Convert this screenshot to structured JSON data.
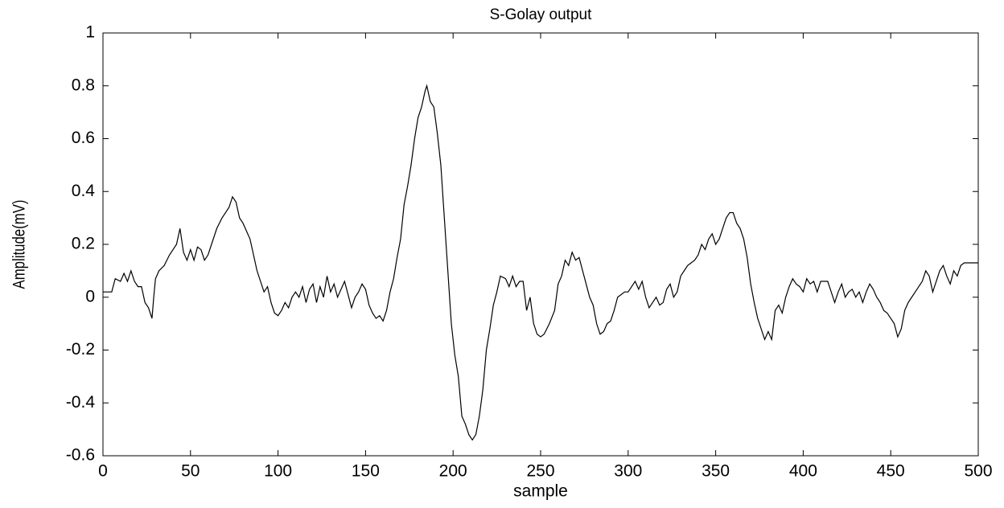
{
  "chart_data": {
    "type": "line",
    "title": "S-Golay output",
    "x_label": "sample",
    "y_label": "Amplitude(mV)",
    "x": [
      0,
      5,
      7,
      10,
      12,
      14,
      16,
      18,
      20,
      22,
      24,
      26,
      28,
      29,
      30,
      32,
      35,
      38,
      40,
      42,
      44,
      46,
      48,
      50,
      52,
      54,
      56,
      58,
      60,
      62,
      65,
      68,
      70,
      72,
      74,
      76,
      78,
      80,
      84,
      86,
      88,
      90,
      92,
      94,
      96,
      98,
      100,
      102,
      104,
      106,
      108,
      110,
      112,
      114,
      116,
      118,
      120,
      122,
      124,
      126,
      128,
      130,
      132,
      134,
      136,
      138,
      140,
      142,
      144,
      146,
      148,
      150,
      152,
      154,
      156,
      158,
      160,
      162,
      164,
      166,
      168,
      170,
      172,
      174,
      176,
      178,
      180,
      182,
      184,
      185,
      187,
      189,
      191,
      193,
      195,
      197,
      199,
      201,
      203,
      205,
      207,
      209,
      211,
      213,
      215,
      217,
      219,
      221,
      223,
      225,
      227,
      230,
      232,
      234,
      236,
      238,
      240,
      242,
      244,
      246,
      248,
      250,
      252,
      255,
      258,
      260,
      262,
      264,
      266,
      268,
      270,
      272,
      274,
      276,
      278,
      280,
      282,
      284,
      286,
      288,
      290,
      292,
      294,
      296,
      298,
      300,
      302,
      304,
      306,
      308,
      310,
      312,
      314,
      316,
      318,
      320,
      322,
      324,
      326,
      328,
      330,
      332,
      334,
      336,
      338,
      340,
      342,
      344,
      346,
      348,
      350,
      352,
      354,
      356,
      358,
      360,
      362,
      364,
      366,
      368,
      370,
      372,
      374,
      376,
      378,
      380,
      382,
      384,
      386,
      388,
      390,
      392,
      394,
      396,
      398,
      400,
      402,
      404,
      406,
      408,
      410,
      412,
      414,
      416,
      418,
      420,
      422,
      424,
      426,
      428,
      430,
      432,
      434,
      436,
      438,
      440,
      442,
      444,
      446,
      448,
      450,
      452,
      454,
      456,
      458,
      460,
      462,
      464,
      466,
      468,
      470,
      472,
      474,
      476,
      478,
      480,
      482,
      484,
      486,
      488,
      490,
      492,
      500
    ],
    "values": [
      0.02,
      0.02,
      0.07,
      0.06,
      0.09,
      0.06,
      0.1,
      0.06,
      0.04,
      0.04,
      -0.02,
      -0.04,
      -0.08,
      0.0,
      0.07,
      0.1,
      0.12,
      0.16,
      0.18,
      0.2,
      0.26,
      0.17,
      0.14,
      0.18,
      0.14,
      0.19,
      0.18,
      0.14,
      0.16,
      0.2,
      0.26,
      0.3,
      0.32,
      0.34,
      0.38,
      0.36,
      0.3,
      0.28,
      0.22,
      0.16,
      0.1,
      0.06,
      0.02,
      0.04,
      -0.02,
      -0.06,
      -0.07,
      -0.05,
      -0.02,
      -0.04,
      0.0,
      0.02,
      0.0,
      0.04,
      -0.02,
      0.03,
      0.05,
      -0.02,
      0.04,
      0.0,
      0.08,
      0.02,
      0.05,
      0.0,
      0.03,
      0.06,
      0.01,
      -0.04,
      0.0,
      0.02,
      0.05,
      0.03,
      -0.03,
      -0.06,
      -0.08,
      -0.07,
      -0.09,
      -0.05,
      0.02,
      0.07,
      0.15,
      0.22,
      0.35,
      0.42,
      0.5,
      0.6,
      0.68,
      0.72,
      0.78,
      0.8,
      0.74,
      0.72,
      0.62,
      0.5,
      0.3,
      0.1,
      -0.1,
      -0.22,
      -0.3,
      -0.45,
      -0.48,
      -0.52,
      -0.54,
      -0.52,
      -0.45,
      -0.35,
      -0.2,
      -0.12,
      -0.03,
      0.02,
      0.08,
      0.07,
      0.04,
      0.08,
      0.04,
      0.06,
      0.06,
      -0.05,
      0.0,
      -0.1,
      -0.14,
      -0.15,
      -0.14,
      -0.1,
      -0.05,
      0.05,
      0.08,
      0.14,
      0.12,
      0.17,
      0.14,
      0.15,
      0.1,
      0.05,
      0.0,
      -0.03,
      -0.1,
      -0.14,
      -0.13,
      -0.1,
      -0.09,
      -0.05,
      0.0,
      0.01,
      0.02,
      0.02,
      0.04,
      0.06,
      0.03,
      0.06,
      0.0,
      -0.04,
      -0.02,
      0.0,
      -0.03,
      -0.02,
      0.03,
      0.05,
      0.0,
      0.02,
      0.08,
      0.1,
      0.12,
      0.13,
      0.14,
      0.16,
      0.2,
      0.18,
      0.22,
      0.24,
      0.2,
      0.22,
      0.26,
      0.3,
      0.32,
      0.32,
      0.28,
      0.26,
      0.22,
      0.15,
      0.05,
      -0.02,
      -0.08,
      -0.12,
      -0.16,
      -0.13,
      -0.16,
      -0.05,
      -0.03,
      -0.06,
      0.0,
      0.04,
      0.07,
      0.05,
      0.04,
      0.02,
      0.07,
      0.05,
      0.06,
      0.02,
      0.06,
      0.06,
      0.06,
      0.02,
      -0.02,
      0.02,
      0.05,
      0.0,
      0.02,
      0.03,
      0.0,
      0.02,
      -0.02,
      0.02,
      0.05,
      0.03,
      0.0,
      -0.02,
      -0.05,
      -0.06,
      -0.08,
      -0.1,
      -0.15,
      -0.12,
      -0.05,
      -0.02,
      0.0,
      0.02,
      0.04,
      0.06,
      0.1,
      0.08,
      0.02,
      0.06,
      0.1,
      0.12,
      0.08,
      0.05,
      0.1,
      0.08,
      0.12,
      0.13,
      0.13
    ],
    "color": "#000000",
    "xlim": [
      0,
      500
    ],
    "xticks": [
      0,
      50,
      100,
      150,
      200,
      250,
      300,
      350,
      400,
      450,
      500
    ],
    "ylim": [
      -0.6,
      1
    ],
    "yticks": [
      -0.6,
      -0.4,
      -0.2,
      0,
      0.2,
      0.4,
      0.6,
      0.8,
      1
    ],
    "grid": false
  }
}
